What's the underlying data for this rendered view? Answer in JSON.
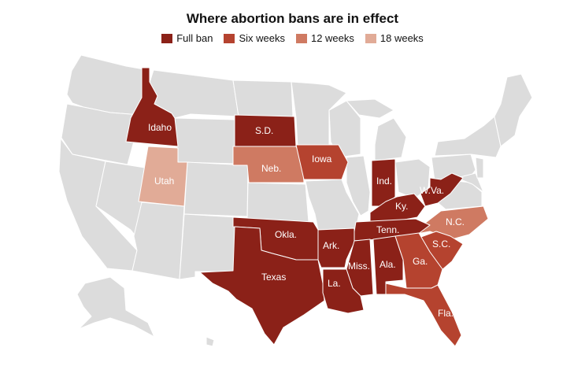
{
  "title": "Where abortion bans are in effect",
  "legend": [
    {
      "label": "Full ban",
      "color": "#8b2118"
    },
    {
      "label": "Six weeks",
      "color": "#b5432f"
    },
    {
      "label": "12 weeks",
      "color": "#cf7a62"
    },
    {
      "label": "18 weeks",
      "color": "#e1ab97"
    }
  ],
  "colors": {
    "none": "#dcdcdc",
    "border": "#ffffff",
    "label_text": "#ffffff"
  },
  "states": {
    "idaho": {
      "label": "Idaho",
      "status": "Full ban"
    },
    "sd": {
      "label": "S.D.",
      "status": "Full ban"
    },
    "neb": {
      "label": "Neb.",
      "status": "12 weeks"
    },
    "iowa": {
      "label": "Iowa",
      "status": "Six weeks"
    },
    "utah": {
      "label": "Utah",
      "status": "18 weeks"
    },
    "ind": {
      "label": "Ind.",
      "status": "Full ban"
    },
    "wva": {
      "label": "W.Va.",
      "status": "Full ban"
    },
    "ky": {
      "label": "Ky.",
      "status": "Full ban"
    },
    "nc": {
      "label": "N.C.",
      "status": "12 weeks"
    },
    "tenn": {
      "label": "Tenn.",
      "status": "Full ban"
    },
    "okla": {
      "label": "Okla.",
      "status": "Full ban"
    },
    "ark": {
      "label": "Ark.",
      "status": "Full ban"
    },
    "sc": {
      "label": "S.C.",
      "status": "Six weeks"
    },
    "texas": {
      "label": "Texas",
      "status": "Full ban"
    },
    "miss": {
      "label": "Miss.",
      "status": "Full ban"
    },
    "ala": {
      "label": "Ala.",
      "status": "Full ban"
    },
    "ga": {
      "label": "Ga.",
      "status": "Six weeks"
    },
    "la": {
      "label": "La.",
      "status": "Full ban"
    },
    "fla": {
      "label": "Fla.",
      "status": "Six weeks"
    }
  }
}
